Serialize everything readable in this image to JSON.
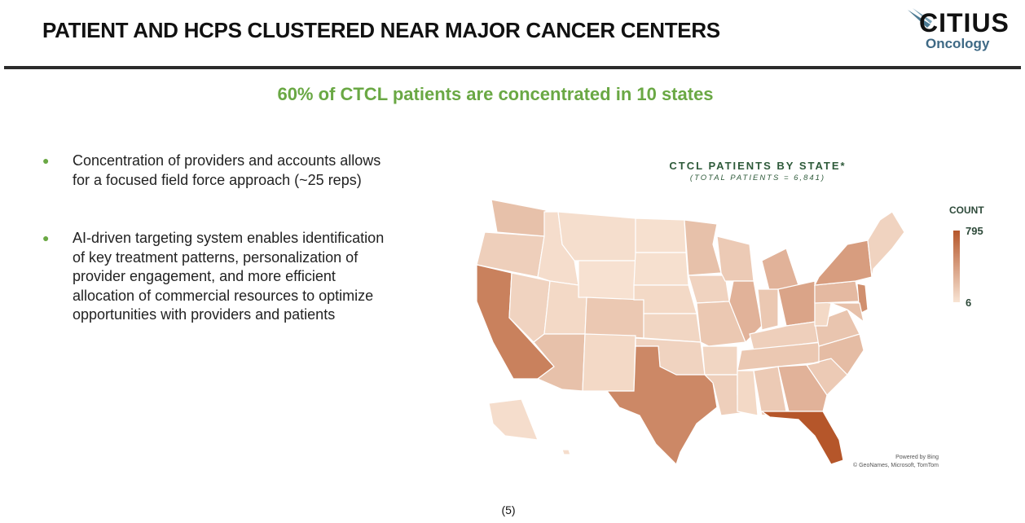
{
  "header": {
    "title": "PATIENT AND HCPS CLUSTERED NEAR MAJOR CANCER CENTERS",
    "logo_main": "CITIUS",
    "logo_sub": "Oncology"
  },
  "subtitle": "60% of CTCL patients are concentrated in 10 states",
  "bullets": [
    "Concentration of providers and accounts allows for a focused field force approach (~25 reps)",
    "AI-driven targeting system enables identification of key treatment patterns, personalization of provider engagement, and more efficient allocation of commercial resources to optimize opportunities with providers and patients"
  ],
  "map": {
    "title": "CTCL PATIENTS BY STATE*",
    "subtitle": "(TOTAL PATIENTS = 6,841)",
    "legend": {
      "title": "COUNT",
      "max": "795",
      "min": "6",
      "color_max": "#b5562a",
      "color_min": "#f8e4d4"
    },
    "attribution_1": "Powered by Bing",
    "attribution_2": "© GeoNames, Microsoft, TomTom",
    "state_intensity": {
      "WA": 0.25,
      "OR": 0.15,
      "CA": 0.7,
      "NV": 0.12,
      "ID": 0.05,
      "MT": 0.04,
      "WY": 0.02,
      "UT": 0.08,
      "AZ": 0.25,
      "CO": 0.2,
      "NM": 0.08,
      "ND": 0.03,
      "SD": 0.03,
      "NE": 0.08,
      "KS": 0.1,
      "OK": 0.12,
      "TX": 0.65,
      "MN": 0.25,
      "IA": 0.12,
      "MO": 0.2,
      "AR": 0.1,
      "LA": 0.15,
      "WI": 0.18,
      "IL": 0.35,
      "MI": 0.35,
      "IN": 0.2,
      "OH": 0.45,
      "KY": 0.15,
      "TN": 0.2,
      "MS": 0.08,
      "AL": 0.18,
      "GA": 0.35,
      "FL": 1.0,
      "SC": 0.18,
      "NC": 0.28,
      "VA": 0.22,
      "WV": 0.08,
      "PA": 0.3,
      "NY": 0.5,
      "NJ": 0.6,
      "MD": 0.25,
      "NE_REGION": 0.12,
      "AK": 0.05,
      "HI": 0.05
    }
  },
  "footnote": "(5)"
}
